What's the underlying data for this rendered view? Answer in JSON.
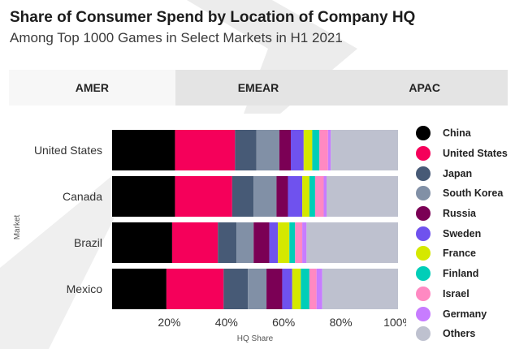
{
  "header": {
    "title": "Share of Consumer Spend by Location of Company HQ",
    "subtitle": "Among Top 1000 Games in Select Markets in H1 2021"
  },
  "tabs": [
    {
      "label": "AMER",
      "active": true
    },
    {
      "label": "EMEAR",
      "active": false
    },
    {
      "label": "APAC",
      "active": false
    }
  ],
  "chart_data": {
    "type": "bar",
    "orientation": "horizontal",
    "stacked": true,
    "title": "",
    "xlabel": "HQ Share",
    "ylabel": "Market",
    "xlim": [
      0,
      100
    ],
    "x_ticks": [
      "20%",
      "40%",
      "60%",
      "80%",
      "100%"
    ],
    "categories": [
      "United States",
      "Canada",
      "Brazil",
      "Mexico"
    ],
    "series": [
      {
        "name": "China",
        "color": "#000000",
        "values": [
          22,
          22,
          21,
          19
        ]
      },
      {
        "name": "United States",
        "color": "#f5005a",
        "values": [
          21,
          20,
          16,
          20
        ]
      },
      {
        "name": "Japan",
        "color": "#475a76",
        "values": [
          7.5,
          7.5,
          6.5,
          8.5
        ]
      },
      {
        "name": "South Korea",
        "color": "#8190a6",
        "values": [
          8,
          8,
          6,
          6.5
        ]
      },
      {
        "name": "Russia",
        "color": "#7b0055",
        "values": [
          4,
          4,
          5.5,
          5.5
        ]
      },
      {
        "name": "Sweden",
        "color": "#6f52ee",
        "values": [
          4.5,
          5,
          3,
          3.5
        ]
      },
      {
        "name": "France",
        "color": "#d5e800",
        "values": [
          3,
          2.5,
          4,
          3
        ]
      },
      {
        "name": "Finland",
        "color": "#00ceb8",
        "values": [
          2.5,
          2,
          2,
          3
        ]
      },
      {
        "name": "Israel",
        "color": "#ff89c2",
        "values": [
          3,
          3,
          2.5,
          2.5
        ]
      },
      {
        "name": "Germany",
        "color": "#c77cff",
        "values": [
          1,
          1,
          1.5,
          2
        ]
      },
      {
        "name": "Others",
        "color": "#bec1cf",
        "values": [
          23.5,
          25,
          32,
          26.5
        ]
      }
    ],
    "legend_position": "right"
  }
}
